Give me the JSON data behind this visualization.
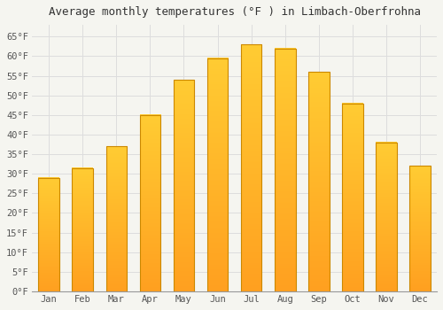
{
  "title": "Average monthly temperatures (°F ) in Limbach-Oberfrohna",
  "months": [
    "Jan",
    "Feb",
    "Mar",
    "Apr",
    "May",
    "Jun",
    "Jul",
    "Aug",
    "Sep",
    "Oct",
    "Nov",
    "Dec"
  ],
  "values": [
    29.0,
    31.5,
    37.0,
    45.0,
    54.0,
    59.5,
    63.0,
    62.0,
    56.0,
    48.0,
    38.0,
    32.0
  ],
  "bar_color_top": "#FFCC33",
  "bar_color_bottom": "#FFA020",
  "bar_edge_color": "#CC8800",
  "ylim": [
    0,
    68
  ],
  "yticks": [
    0,
    5,
    10,
    15,
    20,
    25,
    30,
    35,
    40,
    45,
    50,
    55,
    60,
    65
  ],
  "ytick_labels": [
    "0°F",
    "5°F",
    "10°F",
    "15°F",
    "20°F",
    "25°F",
    "30°F",
    "35°F",
    "40°F",
    "45°F",
    "50°F",
    "55°F",
    "60°F",
    "65°F"
  ],
  "background_color": "#f5f5f0",
  "plot_bg_color": "#f5f5f0",
  "grid_color": "#dddddd",
  "title_fontsize": 9,
  "tick_fontsize": 7.5,
  "title_color": "#333333",
  "tick_color": "#555555"
}
